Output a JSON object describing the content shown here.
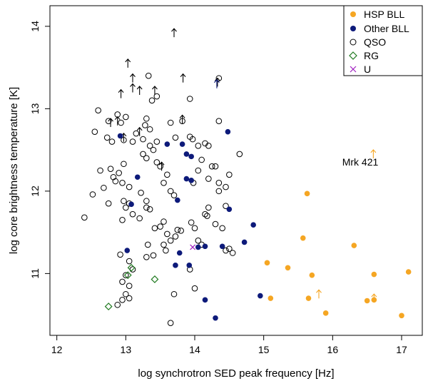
{
  "chart_data": {
    "type": "scatter",
    "xlabel": "log synchrotron SED peak frequency [Hz]",
    "ylabel": "log core brightness temperature [K]",
    "xlim": [
      11.9,
      17.3
    ],
    "ylim": [
      10.25,
      14.25
    ],
    "xticks": [
      12,
      13,
      14,
      15,
      16,
      17
    ],
    "yticks": [
      11,
      12,
      13,
      14
    ],
    "legend_position": "top-right",
    "colors": {
      "hsp": "#f5a623",
      "other": "#0d1a7a",
      "qso": "#000000",
      "rg": "#1f7a1f",
      "u": "#a020c0",
      "upper_limit": "#000000"
    },
    "annotations": [
      {
        "text": "Mrk 421",
        "x": 16.55,
        "y": 12.25
      }
    ],
    "series": [
      {
        "name": "HSP BLL",
        "marker": "filled-circle",
        "color": "#f5a623",
        "points": [
          [
            15.63,
            11.97
          ],
          [
            15.57,
            11.43
          ],
          [
            16.31,
            11.34
          ],
          [
            15.05,
            11.13
          ],
          [
            15.35,
            11.07
          ],
          [
            15.7,
            10.98
          ],
          [
            16.6,
            10.99
          ],
          [
            17.1,
            11.02
          ],
          [
            15.1,
            10.7
          ],
          [
            15.65,
            10.7
          ],
          [
            16.5,
            10.67
          ],
          [
            16.6,
            10.68
          ],
          [
            15.9,
            10.52
          ],
          [
            17.0,
            10.49
          ]
        ]
      },
      {
        "name": "Other BLL",
        "marker": "filled-circle",
        "color": "#0d1a7a",
        "points": [
          [
            12.92,
            12.67
          ],
          [
            13.6,
            12.57
          ],
          [
            13.82,
            12.57
          ],
          [
            13.88,
            12.45
          ],
          [
            13.95,
            12.42
          ],
          [
            14.48,
            12.72
          ],
          [
            13.88,
            12.15
          ],
          [
            13.95,
            12.13
          ],
          [
            13.17,
            12.17
          ],
          [
            13.75,
            11.89
          ],
          [
            14.5,
            11.78
          ],
          [
            13.08,
            11.84
          ],
          [
            14.85,
            11.59
          ],
          [
            14.72,
            11.38
          ],
          [
            14.15,
            11.33
          ],
          [
            14.05,
            11.32
          ],
          [
            14.4,
            11.33
          ],
          [
            13.02,
            11.28
          ],
          [
            13.78,
            11.25
          ],
          [
            13.72,
            11.1
          ],
          [
            13.92,
            11.1
          ],
          [
            14.95,
            10.73
          ],
          [
            14.15,
            10.68
          ],
          [
            14.3,
            10.46
          ]
        ]
      },
      {
        "name": "QSO",
        "marker": "open-circle",
        "color": "#000000",
        "points": [
          [
            12.4,
            11.68
          ],
          [
            12.52,
            11.96
          ],
          [
            12.63,
            12.25
          ],
          [
            12.68,
            12.04
          ],
          [
            12.55,
            12.72
          ],
          [
            12.6,
            12.98
          ],
          [
            12.75,
            12.85
          ],
          [
            12.8,
            12.6
          ],
          [
            12.73,
            12.65
          ],
          [
            12.78,
            12.27
          ],
          [
            12.82,
            12.17
          ],
          [
            12.88,
            12.93
          ],
          [
            12.93,
            12.83
          ],
          [
            12.97,
            12.62
          ],
          [
            13.0,
            12.9
          ],
          [
            12.85,
            12.12
          ],
          [
            12.9,
            12.22
          ],
          [
            12.97,
            12.33
          ],
          [
            12.95,
            12.1
          ],
          [
            13.05,
            12.05
          ],
          [
            13.1,
            12.6
          ],
          [
            13.15,
            12.7
          ],
          [
            13.25,
            12.63
          ],
          [
            13.28,
            12.8
          ],
          [
            13.3,
            12.88
          ],
          [
            13.35,
            12.55
          ],
          [
            13.4,
            12.5
          ],
          [
            13.45,
            12.6
          ],
          [
            13.25,
            12.45
          ],
          [
            13.3,
            12.4
          ],
          [
            13.5,
            12.3
          ],
          [
            13.55,
            12.1
          ],
          [
            13.6,
            12.2
          ],
          [
            13.65,
            12.0
          ],
          [
            13.7,
            11.95
          ],
          [
            13.45,
            12.35
          ],
          [
            13.35,
            12.75
          ],
          [
            13.38,
            13.1
          ],
          [
            13.33,
            13.4
          ],
          [
            13.45,
            13.15
          ],
          [
            13.65,
            12.83
          ],
          [
            13.72,
            12.65
          ],
          [
            13.82,
            12.85
          ],
          [
            13.93,
            12.66
          ],
          [
            13.97,
            12.63
          ],
          [
            14.05,
            12.55
          ],
          [
            14.15,
            12.58
          ],
          [
            14.2,
            12.55
          ],
          [
            14.1,
            12.38
          ],
          [
            14.05,
            12.25
          ],
          [
            13.98,
            12.1
          ],
          [
            14.2,
            12.15
          ],
          [
            14.35,
            12.1
          ],
          [
            14.45,
            12.05
          ],
          [
            14.3,
            12.3
          ],
          [
            14.5,
            12.2
          ],
          [
            14.65,
            12.45
          ],
          [
            14.35,
            12.85
          ],
          [
            13.93,
            13.12
          ],
          [
            14.35,
            13.37
          ],
          [
            12.97,
            11.88
          ],
          [
            13.05,
            11.85
          ],
          [
            13.0,
            11.8
          ],
          [
            13.1,
            11.72
          ],
          [
            12.95,
            11.65
          ],
          [
            13.2,
            11.67
          ],
          [
            13.22,
            11.98
          ],
          [
            13.3,
            11.88
          ],
          [
            13.3,
            11.8
          ],
          [
            13.35,
            11.78
          ],
          [
            13.42,
            11.55
          ],
          [
            13.5,
            11.57
          ],
          [
            13.55,
            11.63
          ],
          [
            13.6,
            11.48
          ],
          [
            13.65,
            11.4
          ],
          [
            13.55,
            11.35
          ],
          [
            13.32,
            11.35
          ],
          [
            13.3,
            11.2
          ],
          [
            13.4,
            11.22
          ],
          [
            13.58,
            11.28
          ],
          [
            13.72,
            11.45
          ],
          [
            13.75,
            11.53
          ],
          [
            13.8,
            11.52
          ],
          [
            13.95,
            11.62
          ],
          [
            14.0,
            11.55
          ],
          [
            14.05,
            11.4
          ],
          [
            14.1,
            11.35
          ],
          [
            14.15,
            11.72
          ],
          [
            14.18,
            11.7
          ],
          [
            14.2,
            11.8
          ],
          [
            14.3,
            11.6
          ],
          [
            14.4,
            11.55
          ],
          [
            14.45,
            11.82
          ],
          [
            14.5,
            11.3
          ],
          [
            14.55,
            11.25
          ],
          [
            14.45,
            11.28
          ],
          [
            13.93,
            11.05
          ],
          [
            14.0,
            10.82
          ],
          [
            12.92,
            11.23
          ],
          [
            13.05,
            11.15
          ],
          [
            13.1,
            11.05
          ],
          [
            13.0,
            10.98
          ],
          [
            12.95,
            10.9
          ],
          [
            13.05,
            10.85
          ],
          [
            13.0,
            10.75
          ],
          [
            12.95,
            10.68
          ],
          [
            13.05,
            10.7
          ],
          [
            12.88,
            10.62
          ],
          [
            13.65,
            10.4
          ],
          [
            14.35,
            12.0
          ],
          [
            14.25,
            12.3
          ],
          [
            12.75,
            11.85
          ],
          [
            13.7,
            10.75
          ]
        ]
      },
      {
        "name": "RG",
        "marker": "open-diamond",
        "color": "#1f7a1f",
        "points": [
          [
            13.08,
            11.07
          ],
          [
            13.03,
            10.98
          ],
          [
            13.42,
            10.93
          ],
          [
            12.75,
            10.6
          ]
        ]
      },
      {
        "name": "U",
        "marker": "x",
        "color": "#a020c0",
        "points": [
          [
            13.97,
            11.32
          ]
        ]
      },
      {
        "name": "QSO upper limits",
        "marker": "up-arrow",
        "color": "#000000",
        "in_legend": false,
        "points": [
          [
            13.7,
            13.92
          ],
          [
            13.03,
            13.55
          ],
          [
            13.1,
            13.37
          ],
          [
            13.1,
            13.25
          ],
          [
            13.2,
            13.22
          ],
          [
            13.42,
            13.22
          ],
          [
            12.93,
            13.18
          ],
          [
            13.83,
            13.37
          ],
          [
            13.82,
            12.87
          ],
          [
            12.78,
            12.83
          ],
          [
            12.88,
            12.85
          ],
          [
            13.2,
            12.72
          ],
          [
            12.97,
            12.65
          ],
          [
            13.52,
            12.3
          ],
          [
            14.33,
            13.32
          ]
        ]
      },
      {
        "name": "HSP upper limits",
        "marker": "up-arrow",
        "color": "#f5a623",
        "in_legend": false,
        "points": [
          [
            16.59,
            12.45
          ],
          [
            15.8,
            10.75
          ],
          [
            16.6,
            10.7
          ]
        ]
      },
      {
        "name": "Other BLL upper limits",
        "marker": "up-arrow",
        "color": "#0d1a7a",
        "in_legend": false,
        "points": [
          [
            14.32,
            13.3
          ]
        ]
      }
    ]
  }
}
